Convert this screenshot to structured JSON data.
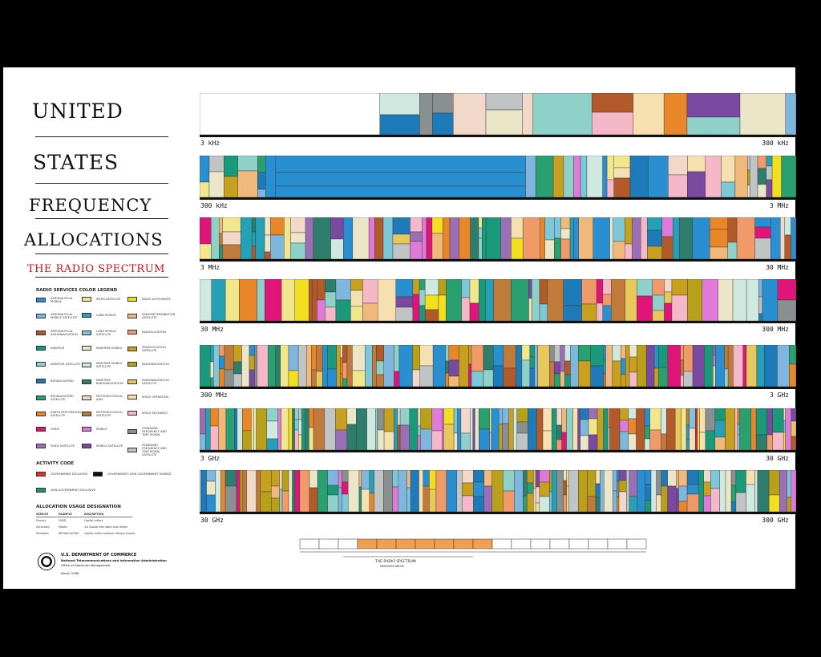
{
  "title": {
    "line1": "UNITED",
    "line2": "STATES",
    "line3": "FREQUENCY",
    "line4": "ALLOCATIONS",
    "subtitle": "THE RADIO SPECTRUM"
  },
  "legend": {
    "heading": "RADIO SERVICES COLOR LEGEND",
    "items": [
      {
        "label": "AERONAUTICAL MOBILE",
        "color": "#2a8fd0"
      },
      {
        "label": "AERONAUTICAL MOBILE SATELLITE",
        "color": "#7fb6de"
      },
      {
        "label": "AERONAUTICAL RADIONAVIGATION",
        "color": "#b25a2a"
      },
      {
        "label": "AMATEUR",
        "color": "#1a9a7a"
      },
      {
        "label": "AMATEUR SATELLITE",
        "color": "#8fd0c8"
      },
      {
        "label": "BROADCASTING",
        "color": "#1e7ab8"
      },
      {
        "label": "BROADCASTING SATELLITE",
        "color": "#2aa070"
      },
      {
        "label": "EARTH EXPLORATION SATELLITE",
        "color": "#e8862a"
      },
      {
        "label": "FIXED",
        "color": "#e0157a"
      },
      {
        "label": "FIXED SATELLITE",
        "color": "#9b6fb5"
      },
      {
        "label": "INTER-SATELLITE",
        "color": "#f2e68c"
      },
      {
        "label": "LAND MOBILE",
        "color": "#26a0b4"
      },
      {
        "label": "LAND MOBILE SATELLITE",
        "color": "#7cc8d8"
      },
      {
        "label": "MARITIME MOBILE",
        "color": "#ece6c8"
      },
      {
        "label": "MARITIME MOBILE SATELLITE",
        "color": "#cfe8e0"
      },
      {
        "label": "MARITIME RADIONAVIGATION",
        "color": "#2f7d6d"
      },
      {
        "label": "METEOROLOGICAL AIDS",
        "color": "#f2d8c8"
      },
      {
        "label": "METEOROLOGICAL SATELLITE",
        "color": "#c07a3a"
      },
      {
        "label": "MOBILE",
        "color": "#e07ad8"
      },
      {
        "label": "MOBILE SATELLITE",
        "color": "#7a4aa0"
      },
      {
        "label": "RADIO ASTRONOMY",
        "color": "#f2e020"
      },
      {
        "label": "RADIODETERMINATION SATELLITE",
        "color": "#f0b87a"
      },
      {
        "label": "RADIOLOCATION",
        "color": "#f09a6a"
      },
      {
        "label": "RADIOLOCATION SATELLITE",
        "color": "#c8a020"
      },
      {
        "label": "RADIONAVIGATION",
        "color": "#b8a01a"
      },
      {
        "label": "RADIONAVIGATION SATELLITE",
        "color": "#e8c85a"
      },
      {
        "label": "SPACE OPERATION",
        "color": "#f6e0b0"
      },
      {
        "label": "SPACE RESEARCH",
        "color": "#f4b8c8"
      },
      {
        "label": "STANDARD FREQUENCY AND TIME SIGNAL",
        "color": "#8a9090"
      },
      {
        "label": "STANDARD FREQUENCY AND TIME SIGNAL SATELLITE",
        "color": "#c0c4c4"
      }
    ]
  },
  "activity": {
    "heading": "ACTIVITY CODE",
    "items": [
      {
        "label": "GOVERNMENT EXCLUSIVE",
        "color": "#e03030"
      },
      {
        "label": "GOVERNMENT/ NON-GOVERNMENT SHARED",
        "color": "#111111"
      },
      {
        "label": "NON-GOVERNMENT EXCLUSIVE",
        "color": "#1a9a6a"
      }
    ]
  },
  "usage": {
    "heading": "ALLOCATION USAGE DESIGNATION",
    "columns": [
      "SERVICE",
      "EXAMPLE",
      "DESCRIPTION"
    ],
    "rows": [
      [
        "Primary",
        "FIXED",
        "Capital Letters"
      ],
      [
        "Secondary",
        "Mobile",
        "1st Capital with lower case letters"
      ],
      [
        "Permitted",
        "BROADCASTING",
        "Capital Letters between oblique strokes"
      ]
    ]
  },
  "department": {
    "line1": "U.S. DEPARTMENT OF COMMERCE",
    "line2": "National Telecommunications and Information Administration",
    "line3": "Office of Spectrum Management",
    "date": "March 1996"
  },
  "bands": [
    {
      "start": "3 kHz",
      "end": "300 kHz"
    },
    {
      "start": "300 kHz",
      "end": "3 MHz"
    },
    {
      "start": "3 MHz",
      "end": "30 MHz"
    },
    {
      "start": "30 MHz",
      "end": "300 MHz"
    },
    {
      "start": "300 MHz",
      "end": "3 GHz"
    },
    {
      "start": "3 GHz",
      "end": "30 GHz"
    },
    {
      "start": "30 GHz",
      "end": "300 GHz"
    }
  ],
  "spectrum_strip": {
    "label": "THE RADIO SPECTRUM",
    "sublabel": "MAGNIFIED ABOVE"
  }
}
